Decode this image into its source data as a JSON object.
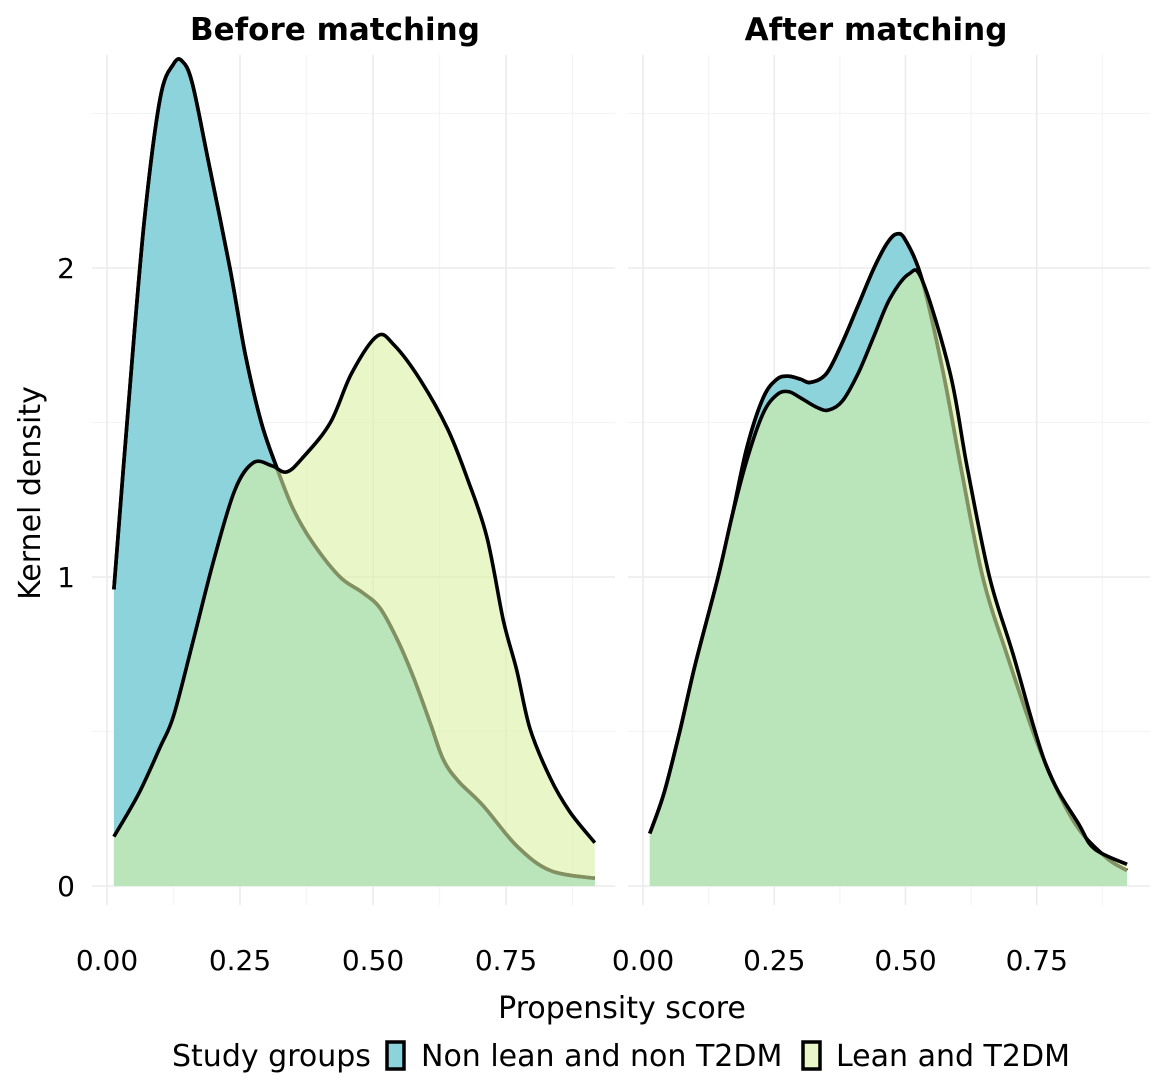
{
  "chart_data": {
    "type": "area",
    "subtype": "kernel-density",
    "xlabel": "Propensity score",
    "ylabel": "Kernel density",
    "xlim": [
      0,
      0.95
    ],
    "ylim": [
      0,
      2.75
    ],
    "x_ticks": [
      0.0,
      0.25,
      0.5,
      0.75
    ],
    "x_tick_labels": [
      "0.00",
      "0.25",
      "0.50",
      "0.75"
    ],
    "y_ticks": [
      0,
      1,
      2
    ],
    "y_tick_labels": [
      "0",
      "1",
      "2"
    ],
    "grid": true,
    "legend": {
      "title": "Study groups",
      "position": "bottom",
      "entries": [
        {
          "label": "Non lean and non T2DM",
          "color": "#8dd3db"
        },
        {
          "label": "Lean and T2DM",
          "color": "#d9f0a3"
        }
      ]
    },
    "panels": [
      {
        "title": "Before matching",
        "series": [
          {
            "name": "Non lean and non T2DM",
            "color": "#8dd3db",
            "x": [
              0.013,
              0.04,
              0.07,
              0.1,
              0.125,
              0.141,
              0.16,
              0.19,
              0.231,
              0.26,
              0.29,
              0.32,
              0.35,
              0.387,
              0.438,
              0.48,
              0.513,
              0.545,
              0.575,
              0.607,
              0.632,
              0.66,
              0.707,
              0.77,
              0.833,
              0.917
            ],
            "y": [
              0.96,
              1.55,
              2.15,
              2.55,
              2.66,
              2.67,
              2.6,
              2.35,
              2.0,
              1.72,
              1.5,
              1.35,
              1.22,
              1.11,
              1.0,
              0.95,
              0.9,
              0.8,
              0.68,
              0.53,
              0.41,
              0.34,
              0.26,
              0.13,
              0.05,
              0.025
            ]
          },
          {
            "name": "Lean and T2DM",
            "color": "#d9f0a3",
            "x": [
              0.013,
              0.06,
              0.1,
              0.125,
              0.16,
              0.2,
              0.24,
              0.275,
              0.31,
              0.338,
              0.37,
              0.42,
              0.46,
              0.508,
              0.54,
              0.588,
              0.64,
              0.677,
              0.714,
              0.745,
              0.77,
              0.795,
              0.833,
              0.87,
              0.917
            ],
            "y": [
              0.16,
              0.3,
              0.45,
              0.55,
              0.78,
              1.05,
              1.28,
              1.37,
              1.36,
              1.34,
              1.39,
              1.5,
              1.66,
              1.78,
              1.75,
              1.64,
              1.48,
              1.32,
              1.13,
              0.86,
              0.7,
              0.51,
              0.35,
              0.24,
              0.14
            ]
          }
        ]
      },
      {
        "title": "After matching",
        "series": [
          {
            "name": "Non lean and non T2DM",
            "color": "#8dd3db",
            "x": [
              0.013,
              0.04,
              0.07,
              0.1,
              0.143,
              0.17,
              0.198,
              0.229,
              0.255,
              0.277,
              0.3,
              0.32,
              0.35,
              0.38,
              0.41,
              0.44,
              0.465,
              0.483,
              0.5,
              0.532,
              0.572,
              0.605,
              0.647,
              0.693,
              0.756,
              0.82,
              0.88,
              0.922
            ],
            "y": [
              0.17,
              0.3,
              0.5,
              0.72,
              1.0,
              1.2,
              1.42,
              1.58,
              1.64,
              1.65,
              1.64,
              1.63,
              1.66,
              1.76,
              1.88,
              2.0,
              2.08,
              2.11,
              2.09,
              1.96,
              1.66,
              1.36,
              1.0,
              0.75,
              0.44,
              0.21,
              0.095,
              0.05
            ]
          },
          {
            "name": "Lean and T2DM",
            "color": "#d9f0a3",
            "x": [
              0.013,
              0.04,
              0.07,
              0.1,
              0.143,
              0.17,
              0.198,
              0.229,
              0.255,
              0.277,
              0.3,
              0.33,
              0.353,
              0.38,
              0.41,
              0.44,
              0.47,
              0.506,
              0.532,
              0.585,
              0.617,
              0.66,
              0.705,
              0.768,
              0.83,
              0.86,
              0.922
            ],
            "y": [
              0.17,
              0.3,
              0.5,
              0.72,
              1.0,
              1.2,
              1.38,
              1.53,
              1.59,
              1.6,
              1.58,
              1.55,
              1.54,
              1.57,
              1.66,
              1.78,
              1.9,
              1.98,
              1.96,
              1.66,
              1.36,
              1.0,
              0.75,
              0.39,
              0.2,
              0.12,
              0.07
            ]
          }
        ]
      }
    ]
  }
}
